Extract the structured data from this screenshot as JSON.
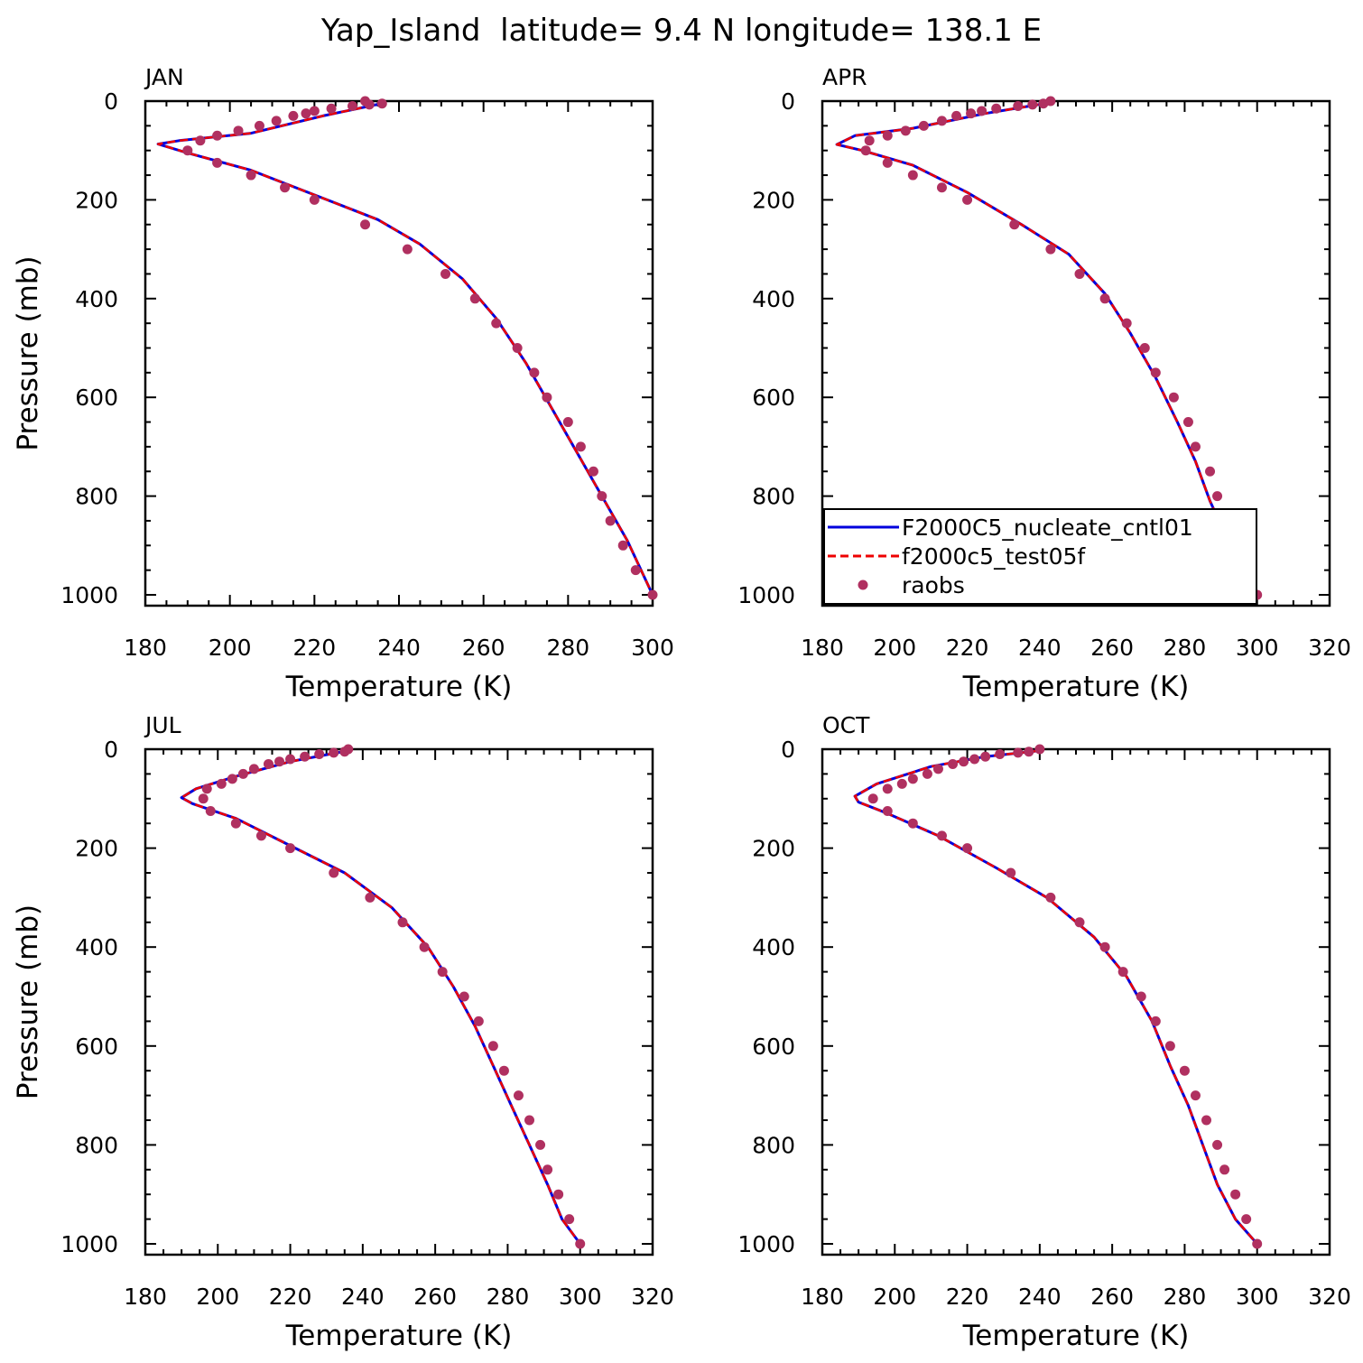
{
  "figure_title": "Yap_Island  latitude= 9.4 N longitude= 138.1 E",
  "colors": {
    "cntl": "#0000dd",
    "test": "#ee0000",
    "raobs": "#b03060",
    "axis": "#000000"
  },
  "legend": {
    "entries": [
      {
        "label": "F2000C5_nucleate_cntl01",
        "style": "solid-line",
        "color": "#0000dd"
      },
      {
        "label": "f2000c5_test05f",
        "style": "dashed-line",
        "color": "#ee0000"
      },
      {
        "label": "raobs",
        "style": "marker",
        "color": "#b03060"
      }
    ],
    "panel": "APR",
    "placement": "lower-right"
  },
  "chart_data": [
    {
      "type": "line",
      "panel_label": "JAN",
      "xlabel": "Temperature (K)",
      "ylabel": "Pressure (mb)",
      "xlim": [
        180,
        300
      ],
      "xticks": [
        180,
        200,
        220,
        240,
        260,
        280,
        300
      ],
      "ylim": [
        1000,
        0
      ],
      "yticks": [
        0,
        200,
        400,
        600,
        800,
        1000
      ],
      "grid": false,
      "series": [
        {
          "name": "F2000C5_nucleate_cntl01",
          "style": "solid",
          "color": "#0000dd",
          "x": [
            237,
            222,
            205,
            188,
            183,
            190,
            205,
            220,
            235,
            245,
            255,
            263,
            270,
            276,
            282,
            288,
            294,
            300
          ],
          "y": [
            3,
            30,
            65,
            80,
            87,
            105,
            140,
            190,
            240,
            290,
            360,
            440,
            530,
            620,
            710,
            800,
            890,
            1000
          ]
        },
        {
          "name": "f2000c5_test05f",
          "style": "dashed",
          "color": "#ee0000",
          "x": [
            237,
            222,
            205,
            188,
            183,
            190,
            205,
            220,
            235,
            245,
            255,
            263,
            270,
            276,
            282,
            288,
            294,
            300
          ],
          "y": [
            3,
            30,
            65,
            80,
            87,
            105,
            140,
            190,
            240,
            290,
            360,
            440,
            530,
            620,
            710,
            800,
            890,
            1000
          ]
        },
        {
          "name": "raobs",
          "style": "marker",
          "color": "#b03060",
          "x": [
            232,
            236,
            233,
            229,
            224,
            220,
            218,
            215,
            211,
            207,
            202,
            197,
            193,
            190,
            197,
            205,
            213,
            220,
            232,
            242,
            251,
            258,
            263,
            268,
            272,
            275,
            280,
            283,
            286,
            288,
            290,
            293,
            296,
            300
          ],
          "y": [
            0,
            5,
            7,
            10,
            15,
            20,
            25,
            30,
            40,
            50,
            60,
            70,
            80,
            100,
            125,
            150,
            175,
            200,
            250,
            300,
            350,
            400,
            450,
            500,
            550,
            600,
            650,
            700,
            750,
            800,
            850,
            900,
            950,
            1000
          ]
        }
      ]
    },
    {
      "type": "line",
      "panel_label": "APR",
      "xlabel": "Temperature (K)",
      "ylabel": "",
      "xlim": [
        180,
        320
      ],
      "xticks": [
        180,
        200,
        220,
        240,
        260,
        280,
        300,
        320
      ],
      "ylim": [
        1000,
        0
      ],
      "yticks": [
        0,
        200,
        400,
        600,
        800,
        1000
      ],
      "grid": false,
      "series": [
        {
          "name": "F2000C5_nucleate_cntl01",
          "style": "solid",
          "color": "#0000dd",
          "x": [
            243,
            225,
            205,
            189,
            184,
            191,
            205,
            220,
            235,
            248,
            258,
            265,
            272,
            278,
            283,
            287,
            292,
            296,
            300
          ],
          "y": [
            3,
            25,
            55,
            70,
            88,
            100,
            130,
            185,
            250,
            310,
            390,
            470,
            560,
            650,
            730,
            810,
            890,
            950,
            1000
          ]
        },
        {
          "name": "f2000c5_test05f",
          "style": "dashed",
          "color": "#ee0000",
          "x": [
            243,
            225,
            205,
            189,
            184,
            191,
            205,
            220,
            235,
            248,
            258,
            265,
            272,
            278,
            283,
            287,
            292,
            296,
            300
          ],
          "y": [
            3,
            25,
            55,
            70,
            88,
            100,
            130,
            185,
            250,
            310,
            390,
            470,
            560,
            650,
            730,
            810,
            890,
            950,
            1000
          ]
        },
        {
          "name": "raobs",
          "style": "marker",
          "color": "#b03060",
          "x": [
            243,
            241,
            238,
            234,
            228,
            224,
            221,
            217,
            213,
            208,
            203,
            198,
            193,
            192,
            198,
            205,
            213,
            220,
            233,
            243,
            251,
            258,
            264,
            269,
            272,
            277,
            281,
            283,
            287,
            289,
            291,
            293,
            297,
            300
          ],
          "y": [
            0,
            5,
            7,
            10,
            15,
            20,
            25,
            30,
            40,
            50,
            60,
            70,
            80,
            100,
            125,
            150,
            175,
            200,
            250,
            300,
            350,
            400,
            450,
            500,
            550,
            600,
            650,
            700,
            750,
            800,
            850,
            900,
            950,
            1000
          ]
        }
      ]
    },
    {
      "type": "line",
      "panel_label": "JUL",
      "xlabel": "Temperature (K)",
      "ylabel": "Pressure (mb)",
      "xlim": [
        180,
        320
      ],
      "xticks": [
        180,
        200,
        220,
        240,
        260,
        280,
        300,
        320
      ],
      "ylim": [
        1000,
        0
      ],
      "yticks": [
        0,
        200,
        400,
        600,
        800,
        1000
      ],
      "grid": false,
      "series": [
        {
          "name": "F2000C5_nucleate_cntl01",
          "style": "solid",
          "color": "#0000dd",
          "x": [
            236,
            220,
            205,
            194,
            190,
            193,
            205,
            220,
            235,
            248,
            258,
            265,
            271,
            276,
            281,
            286,
            291,
            295,
            300
          ],
          "y": [
            3,
            25,
            55,
            80,
            98,
            110,
            140,
            195,
            250,
            320,
            400,
            480,
            560,
            640,
            720,
            800,
            880,
            950,
            1000
          ]
        },
        {
          "name": "f2000c5_test05f",
          "style": "dashed",
          "color": "#ee0000",
          "x": [
            236,
            220,
            205,
            194,
            190,
            193,
            205,
            220,
            235,
            248,
            258,
            265,
            271,
            276,
            281,
            286,
            291,
            295,
            300
          ],
          "y": [
            3,
            25,
            55,
            80,
            98,
            110,
            140,
            195,
            250,
            320,
            400,
            480,
            560,
            640,
            720,
            800,
            880,
            950,
            1000
          ]
        },
        {
          "name": "raobs",
          "style": "marker",
          "color": "#b03060",
          "x": [
            236,
            235,
            232,
            228,
            224,
            220,
            217,
            214,
            210,
            207,
            204,
            201,
            197,
            196,
            198,
            205,
            212,
            220,
            232,
            242,
            251,
            257,
            262,
            268,
            272,
            276,
            279,
            283,
            286,
            289,
            291,
            294,
            297,
            300
          ],
          "y": [
            0,
            5,
            7,
            10,
            15,
            20,
            25,
            30,
            40,
            50,
            60,
            70,
            80,
            100,
            125,
            150,
            175,
            200,
            250,
            300,
            350,
            400,
            450,
            500,
            550,
            600,
            650,
            700,
            750,
            800,
            850,
            900,
            950,
            1000
          ]
        }
      ]
    },
    {
      "type": "line",
      "panel_label": "OCT",
      "xlabel": "Temperature (K)",
      "ylabel": "",
      "xlim": [
        180,
        320
      ],
      "xticks": [
        180,
        200,
        220,
        240,
        260,
        280,
        300,
        320
      ],
      "ylim": [
        1000,
        0
      ],
      "yticks": [
        0,
        200,
        400,
        600,
        800,
        1000
      ],
      "grid": false,
      "series": [
        {
          "name": "F2000C5_nucleate_cntl01",
          "style": "solid",
          "color": "#0000dd",
          "x": [
            240,
            225,
            210,
            195,
            189,
            190,
            198,
            212,
            228,
            242,
            255,
            264,
            271,
            276,
            281,
            285,
            289,
            294,
            300
          ],
          "y": [
            3,
            15,
            35,
            70,
            95,
            107,
            130,
            175,
            240,
            300,
            380,
            460,
            550,
            640,
            720,
            800,
            880,
            950,
            1000
          ]
        },
        {
          "name": "f2000c5_test05f",
          "style": "dashed",
          "color": "#ee0000",
          "x": [
            240,
            225,
            210,
            195,
            189,
            190,
            198,
            212,
            228,
            242,
            255,
            264,
            271,
            276,
            281,
            285,
            289,
            294,
            300
          ],
          "y": [
            3,
            15,
            35,
            70,
            95,
            107,
            130,
            175,
            240,
            300,
            380,
            460,
            550,
            640,
            720,
            800,
            880,
            950,
            1000
          ]
        },
        {
          "name": "raobs",
          "style": "marker",
          "color": "#b03060",
          "x": [
            240,
            237,
            234,
            229,
            225,
            222,
            219,
            216,
            212,
            209,
            205,
            202,
            198,
            194,
            198,
            205,
            213,
            220,
            232,
            243,
            251,
            258,
            263,
            268,
            272,
            276,
            280,
            283,
            286,
            289,
            291,
            294,
            297,
            300
          ],
          "y": [
            0,
            5,
            7,
            10,
            15,
            20,
            25,
            30,
            40,
            50,
            60,
            70,
            80,
            100,
            125,
            150,
            175,
            200,
            250,
            300,
            350,
            400,
            450,
            500,
            550,
            600,
            650,
            700,
            750,
            800,
            850,
            900,
            950,
            1000
          ]
        }
      ]
    }
  ]
}
